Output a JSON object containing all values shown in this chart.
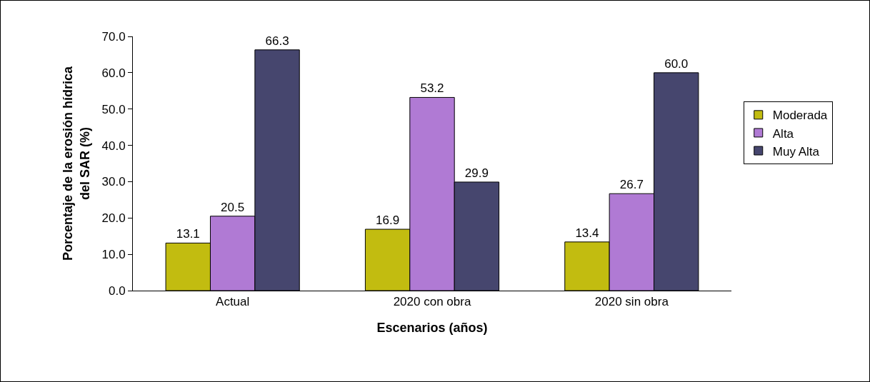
{
  "chart_data": {
    "type": "bar",
    "xlabel": "Escenarios (años)",
    "ylabel": "Porcentaje de la erosión hídrica del SAR (%)",
    "categories": [
      "Actual",
      "2020 con obra",
      "2020 sin obra"
    ],
    "series": [
      {
        "name": "Moderada",
        "color": "#c2bc10",
        "values": [
          13.1,
          16.9,
          13.4
        ],
        "value_labels": [
          "13.1",
          "16.9",
          "13.4"
        ]
      },
      {
        "name": "Alta",
        "color": "#b07ad4",
        "values": [
          20.5,
          53.2,
          26.7
        ],
        "value_labels": [
          "20.5",
          "53.2",
          "26.7"
        ]
      },
      {
        "name": "Muy Alta",
        "color": "#46466e",
        "values": [
          66.3,
          29.9,
          60.0
        ],
        "value_labels": [
          "66.3",
          "29.9",
          "60.0"
        ]
      }
    ],
    "ylim": [
      0,
      70
    ],
    "yticks": [
      {
        "value": 0,
        "label": "0.0"
      },
      {
        "value": 10,
        "label": "10.0"
      },
      {
        "value": 20,
        "label": "20.0"
      },
      {
        "value": 30,
        "label": "30.0"
      },
      {
        "value": 40,
        "label": "40.0"
      },
      {
        "value": 50,
        "label": "50.0"
      },
      {
        "value": 60,
        "label": "60.0"
      },
      {
        "value": 70,
        "label": "70.0"
      }
    ],
    "grid": false,
    "legend": "right"
  }
}
